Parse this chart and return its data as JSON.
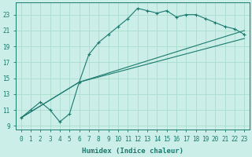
{
  "xlabel": "Humidex (Indice chaleur)",
  "background_color": "#cceee8",
  "line_color": "#1a7a6e",
  "grid_color": "#aaddcc",
  "xlim": [
    -0.5,
    23.5
  ],
  "ylim": [
    8.5,
    24.5
  ],
  "xticks": [
    0,
    1,
    2,
    3,
    4,
    5,
    6,
    7,
    8,
    9,
    10,
    11,
    12,
    13,
    14,
    15,
    16,
    17,
    18,
    19,
    20,
    21,
    22,
    23
  ],
  "yticks": [
    9,
    11,
    13,
    15,
    17,
    19,
    21,
    23
  ],
  "line1_x": [
    0,
    1,
    2,
    3,
    4,
    5,
    6,
    7,
    8,
    9,
    10,
    11,
    12,
    13,
    14,
    15,
    16,
    17,
    18,
    19,
    20,
    21,
    22,
    23
  ],
  "line1_y": [
    10.0,
    11.0,
    12.0,
    11.0,
    9.5,
    10.5,
    14.5,
    18.0,
    19.5,
    20.5,
    21.5,
    22.5,
    23.8,
    23.5,
    23.2,
    23.5,
    22.7,
    23.0,
    23.0,
    22.5,
    22.0,
    21.5,
    21.2,
    20.5
  ],
  "line2_x": [
    0,
    6,
    23
  ],
  "line2_y": [
    10.0,
    14.5,
    21.0
  ],
  "line3_x": [
    0,
    6,
    23
  ],
  "line3_y": [
    10.0,
    14.5,
    20.0
  ]
}
